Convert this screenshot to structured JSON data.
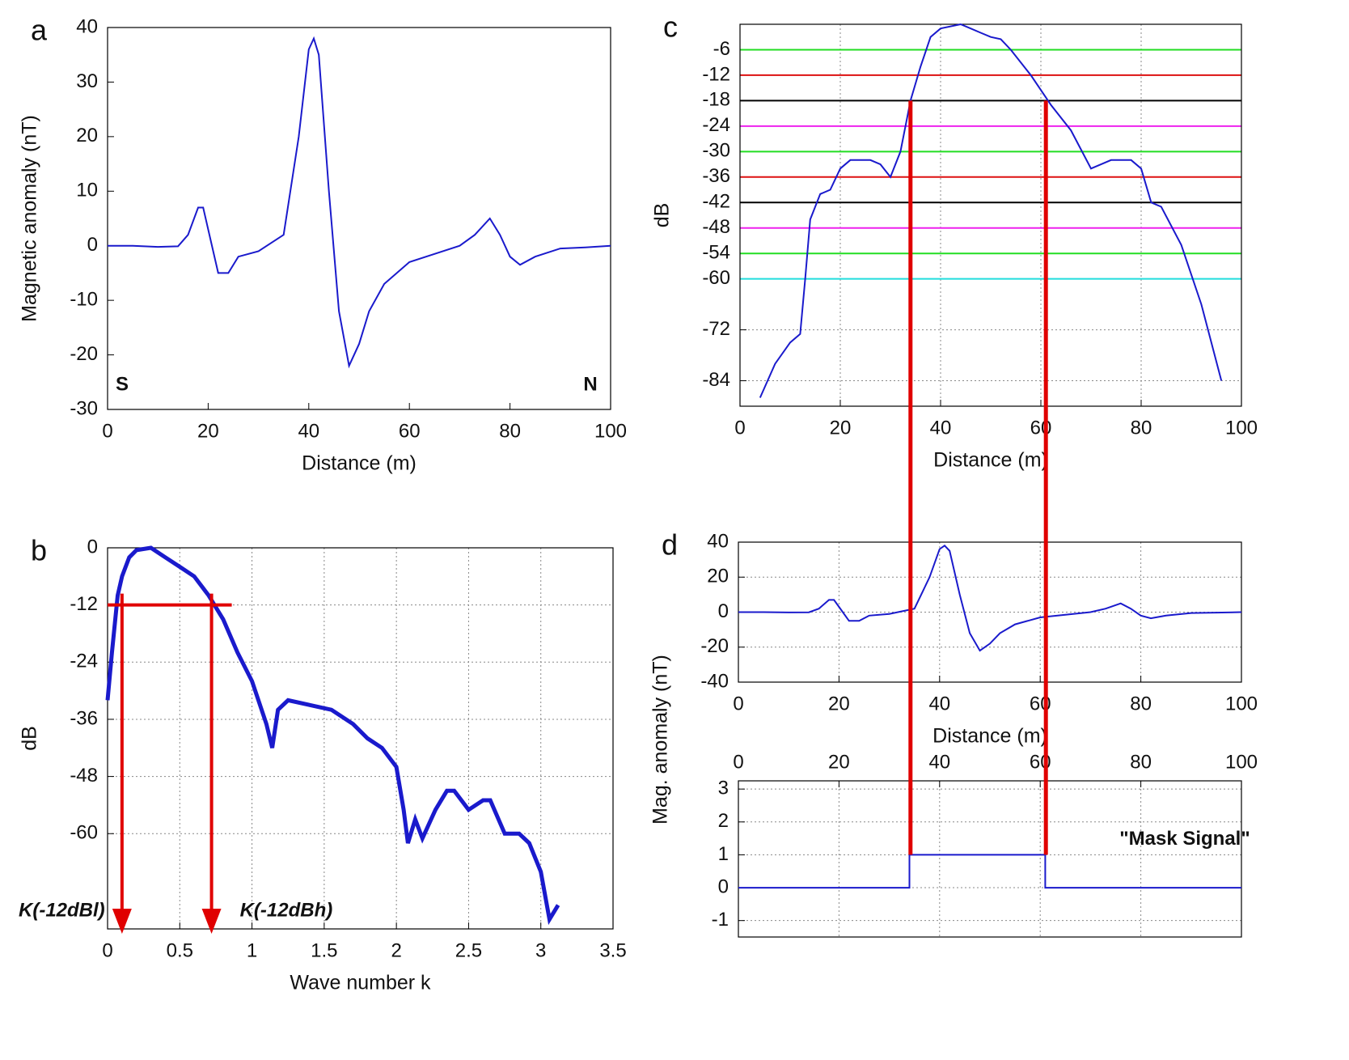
{
  "chart_data": [
    {
      "type": "line",
      "panel": "a",
      "xlabel": "Distance (m)",
      "ylabel": "Magnetic anomaly (nT)",
      "xlim": [
        0,
        100
      ],
      "ylim": [
        -30,
        40
      ],
      "xticks": [
        0,
        20,
        40,
        60,
        80,
        100
      ],
      "yticks": [
        -30,
        -20,
        -10,
        0,
        10,
        20,
        30,
        40
      ],
      "grid": false,
      "color": "#1a1acc",
      "x": [
        0,
        5,
        10,
        14,
        16,
        18,
        19,
        20,
        22,
        24,
        26,
        30,
        35,
        38,
        40,
        41,
        42,
        44,
        46,
        48,
        50,
        52,
        55,
        60,
        65,
        70,
        73,
        76,
        78,
        80,
        82,
        85,
        90,
        95,
        100
      ],
      "values": [
        0,
        0,
        -0.2,
        -0.1,
        2,
        7,
        7,
        3,
        -5,
        -5,
        -2,
        -1,
        2,
        20,
        36,
        38,
        35,
        10,
        -12,
        -22,
        -18,
        -12,
        -7,
        -3,
        -1.5,
        0,
        2,
        5,
        2,
        -2,
        -3.5,
        -2,
        -0.5,
        -0.3,
        0
      ],
      "annotations": [
        "S",
        "N"
      ]
    },
    {
      "type": "line",
      "panel": "b",
      "xlabel": "Wave number k",
      "ylabel": "dB",
      "xlim": [
        0,
        3.5
      ],
      "ylim": [
        -80,
        0
      ],
      "xticks": [
        0,
        0.5,
        1,
        1.5,
        2,
        2.5,
        3,
        3.5
      ],
      "yticks": [
        -60,
        -48,
        -36,
        -24,
        -12,
        0
      ],
      "grid": true,
      "color": "#1a1acc",
      "x": [
        0,
        0.03,
        0.07,
        0.1,
        0.15,
        0.2,
        0.3,
        0.4,
        0.5,
        0.6,
        0.7,
        0.8,
        0.9,
        1.0,
        1.1,
        1.14,
        1.18,
        1.25,
        1.4,
        1.55,
        1.7,
        1.8,
        1.9,
        2.0,
        2.05,
        2.08,
        2.13,
        2.18,
        2.27,
        2.35,
        2.4,
        2.5,
        2.6,
        2.65,
        2.75,
        2.85,
        2.92,
        3.0,
        3.06,
        3.12
      ],
      "values": [
        -32,
        -22,
        -10,
        -6,
        -2,
        -0.5,
        0,
        -2,
        -4,
        -6,
        -10,
        -15,
        -22,
        -28,
        -37,
        -42,
        -34,
        -32,
        -33,
        -34,
        -37,
        -40,
        -42,
        -46,
        -55,
        -62,
        -57,
        -61,
        -55,
        -51,
        -51,
        -55,
        -53,
        -53,
        -60,
        -60,
        -62,
        -68,
        -78,
        -75
      ],
      "markers": {
        "level": -12,
        "k": [
          0.1,
          0.72
        ],
        "color": "#e00000"
      },
      "annotations": [
        "K(-12dBl)",
        "K(-12dBh)"
      ]
    },
    {
      "type": "line",
      "panel": "c",
      "xlabel": "Distance (m)",
      "ylabel": "dB",
      "xlim": [
        0,
        100
      ],
      "ylim": [
        -90,
        0
      ],
      "xticks": [
        0,
        20,
        40,
        60,
        80,
        100
      ],
      "yticks": [
        -84,
        -72,
        -60,
        -54,
        -48,
        -42,
        -36,
        -30,
        -24,
        -18,
        -12,
        -6
      ],
      "grid": true,
      "color": "#1a1acc",
      "x": [
        4,
        7,
        10,
        12,
        13,
        14,
        16,
        18,
        20,
        22,
        26,
        28,
        30,
        32,
        34,
        36,
        38,
        40,
        44,
        46,
        48,
        50,
        52,
        54,
        58,
        62,
        66,
        70,
        72,
        74,
        78,
        80,
        82,
        84,
        88,
        92,
        96
      ],
      "values": [
        -88,
        -80,
        -75,
        -73,
        -60,
        -46,
        -40,
        -39,
        -34,
        -32,
        -32,
        -33,
        -36,
        -30,
        -18,
        -10,
        -3,
        -1,
        0,
        -1,
        -2,
        -3,
        -3.5,
        -6,
        -12,
        -19,
        -25,
        -34,
        -33,
        -32,
        -32,
        -34,
        -42,
        -43,
        -52,
        -66,
        -84
      ],
      "levels": [
        {
          "value": -6,
          "color": "#22dd22"
        },
        {
          "value": -12,
          "color": "#dd1111"
        },
        {
          "value": -18,
          "color": "#000000"
        },
        {
          "value": -24,
          "color": "#ee22ee"
        },
        {
          "value": -30,
          "color": "#22dd22"
        },
        {
          "value": -36,
          "color": "#dd1111"
        },
        {
          "value": -42,
          "color": "#000000"
        },
        {
          "value": -48,
          "color": "#ee22ee"
        },
        {
          "value": -54,
          "color": "#22dd22"
        },
        {
          "value": -60,
          "color": "#22dddd"
        }
      ],
      "cut": {
        "level": -18,
        "x": [
          34,
          61
        ],
        "color": "#e00000"
      }
    },
    {
      "type": "line",
      "panel": "d",
      "xlabel": "Distance (m)",
      "ylabel": "Mag. anomaly (nT)",
      "xlim": [
        0,
        100
      ],
      "ylim": [
        -40,
        40
      ],
      "xticks": [
        0,
        20,
        40,
        60,
        80,
        100
      ],
      "yticks": [
        -40,
        -20,
        0,
        20,
        40
      ],
      "grid": true,
      "color": "#1a1acc",
      "x": [
        0,
        5,
        10,
        14,
        16,
        18,
        19,
        20,
        22,
        24,
        26,
        30,
        35,
        38,
        40,
        41,
        42,
        44,
        46,
        48,
        50,
        52,
        55,
        60,
        65,
        70,
        73,
        76,
        78,
        80,
        82,
        85,
        90,
        95,
        100
      ],
      "values": [
        0,
        0,
        -0.2,
        -0.1,
        2,
        7,
        7,
        3,
        -5,
        -5,
        -2,
        -1,
        2,
        20,
        36,
        38,
        35,
        10,
        -12,
        -22,
        -18,
        -12,
        -7,
        -3,
        -1.5,
        0,
        2,
        5,
        2,
        -2,
        -3.5,
        -2,
        -0.5,
        -0.3,
        0
      ]
    },
    {
      "type": "line",
      "xlim": [
        0,
        100
      ],
      "ylim": [
        -1.5,
        3.25
      ],
      "xticks": [
        0,
        20,
        40,
        60,
        80,
        100
      ],
      "yticks": [
        -1,
        0,
        1,
        2,
        3
      ],
      "grid": true,
      "color": "#1a1acc",
      "xaxis": "top",
      "x": [
        0,
        34,
        34,
        61,
        61,
        100
      ],
      "values": [
        0,
        0,
        1,
        1,
        0,
        0
      ],
      "annotations": [
        "\"Mask Signal\""
      ]
    }
  ]
}
